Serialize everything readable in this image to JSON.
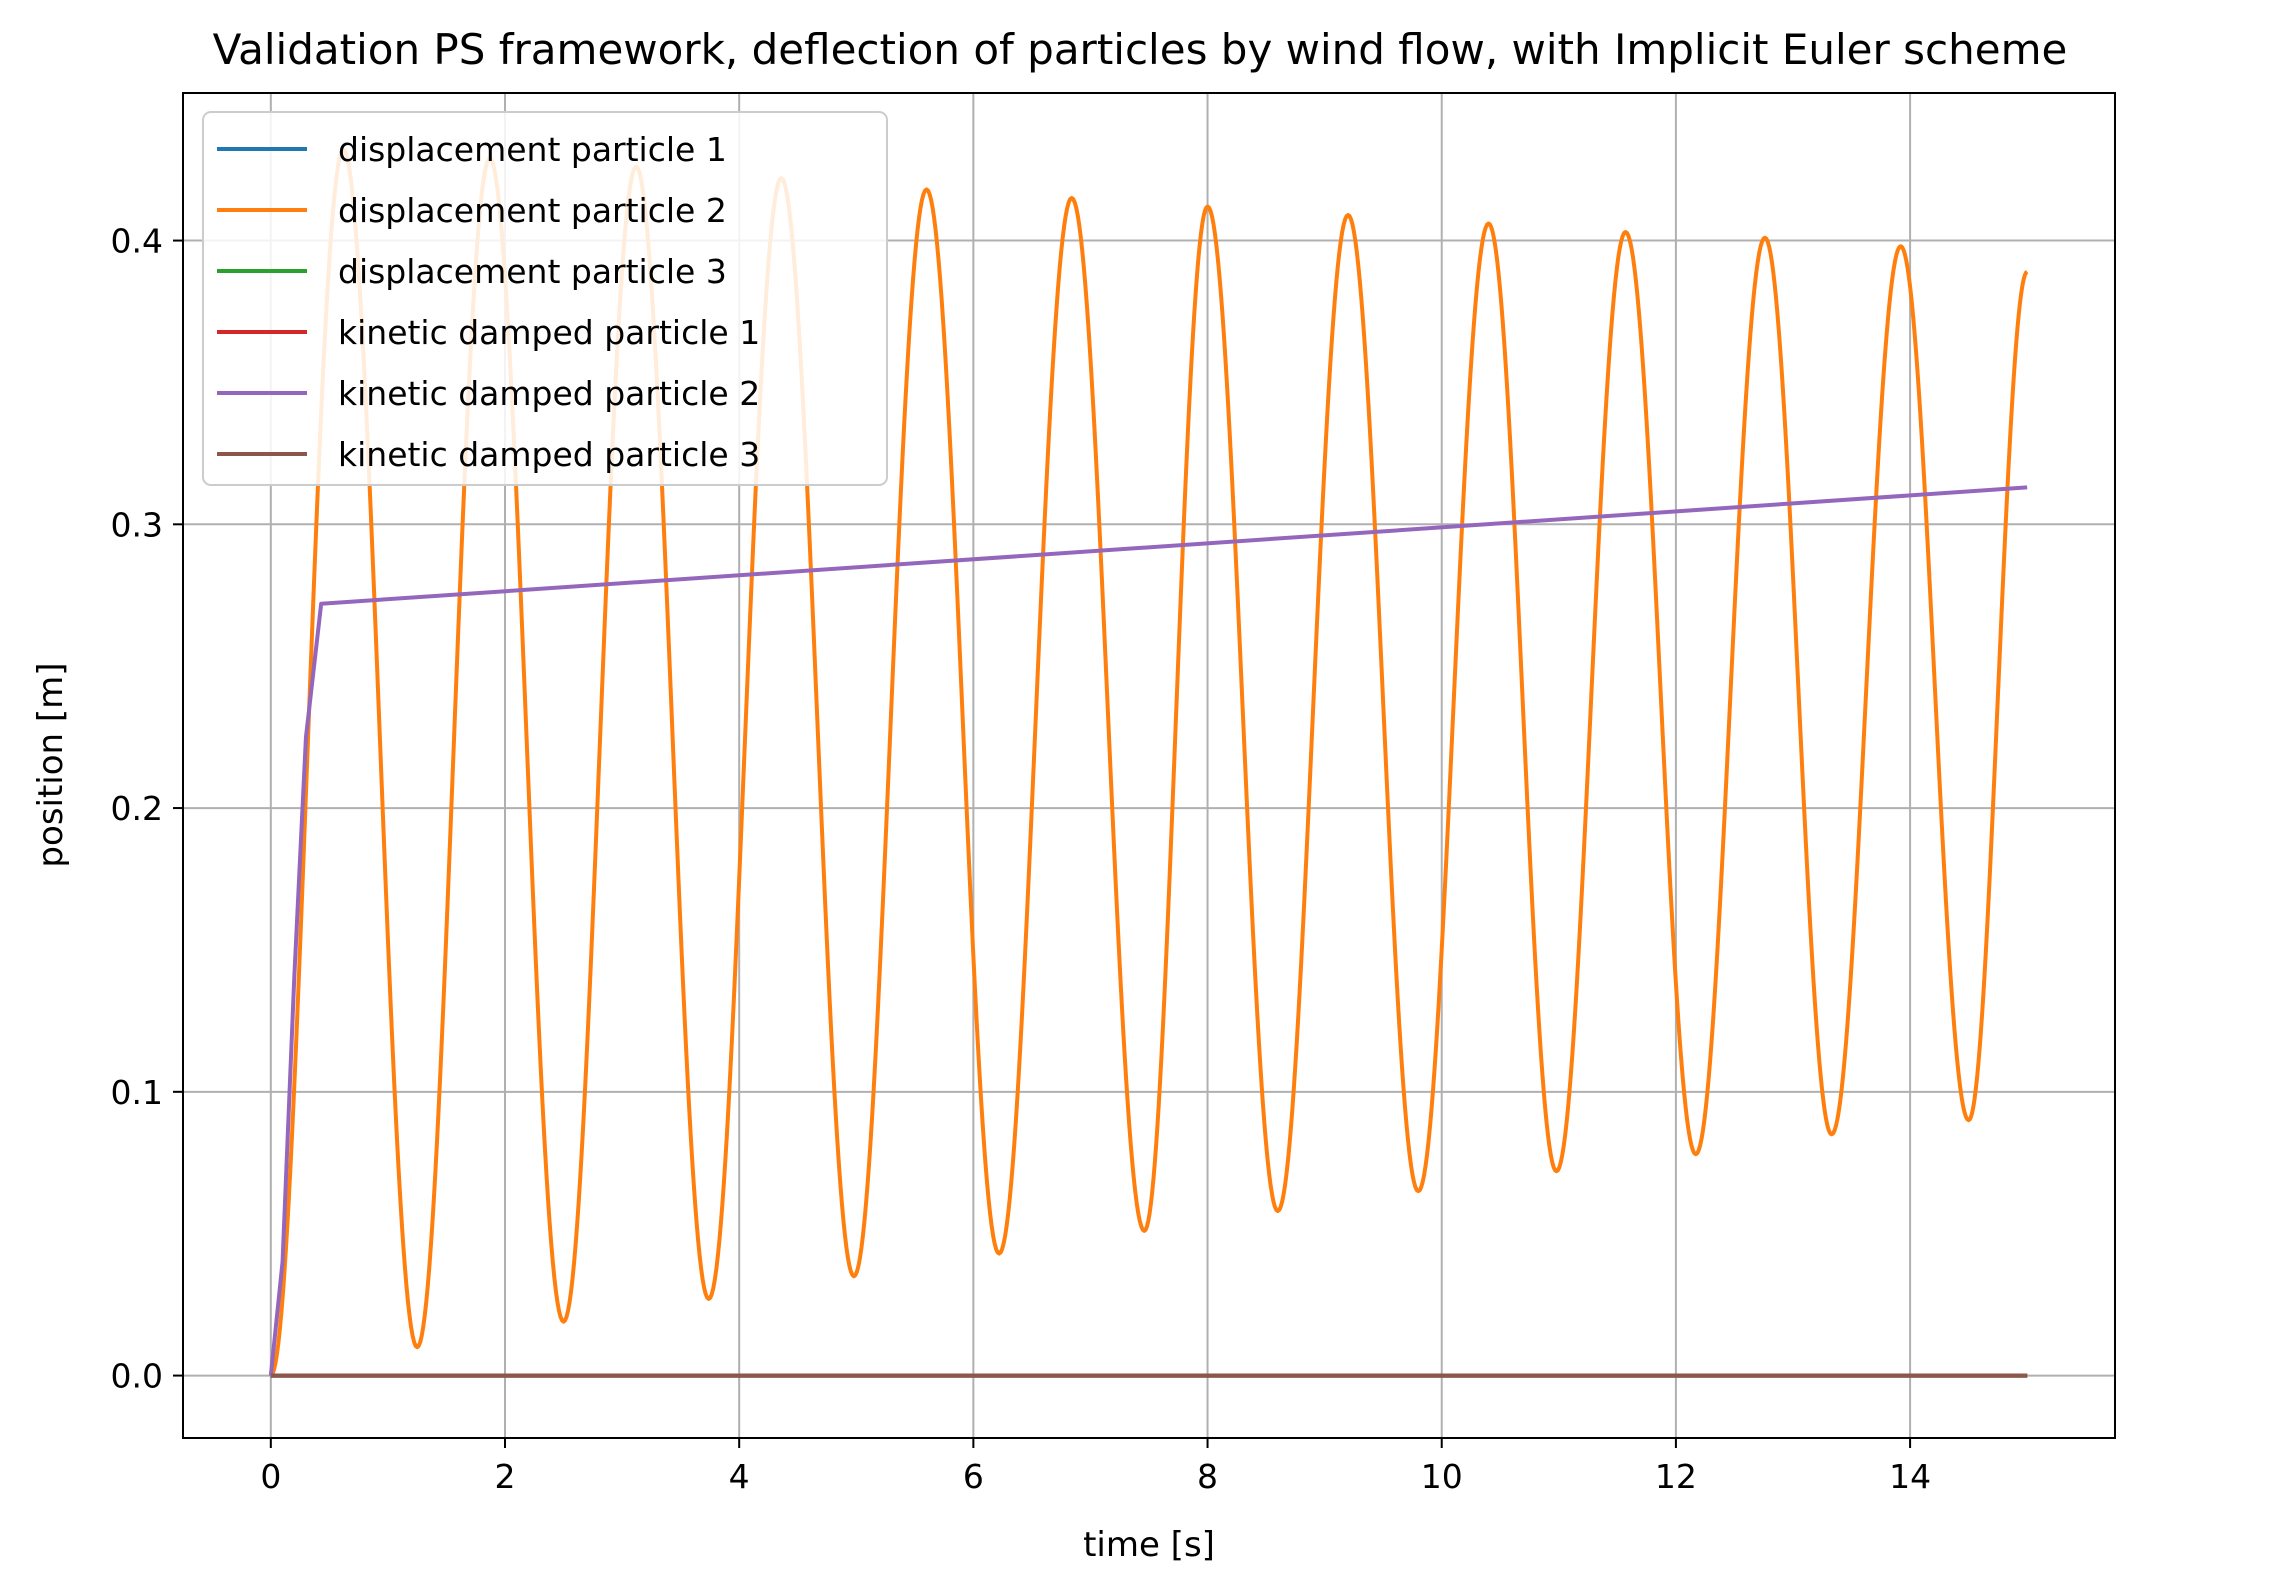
{
  "chart_data": {
    "type": "line",
    "title": "Validation PS framework, deflection of particles by wind flow, with Implicit Euler scheme",
    "xlabel": "time [s]",
    "ylabel": "position [m]",
    "xlim": [
      -0.75,
      15.75
    ],
    "ylim": [
      -0.022,
      0.452
    ],
    "xticks": [
      0,
      2,
      4,
      6,
      8,
      10,
      12,
      14
    ],
    "yticks": [
      0.0,
      0.1,
      0.2,
      0.3,
      0.4
    ],
    "xtick_labels": [
      "0",
      "2",
      "4",
      "6",
      "8",
      "10",
      "12",
      "14"
    ],
    "ytick_labels": [
      "0.0",
      "0.1",
      "0.2",
      "0.3",
      "0.4"
    ],
    "grid": true,
    "legend_position": "upper-left",
    "series": [
      {
        "name": "displacement particle 1",
        "color": "#1f77b4",
        "x": [
          0,
          15
        ],
        "y": [
          0,
          0
        ]
      },
      {
        "name": "displacement particle 2",
        "color": "#ff7f0e",
        "x": [
          0,
          0.62,
          1.25,
          1.87,
          2.5,
          3.12,
          3.74,
          4.36,
          4.98,
          5.6,
          6.22,
          6.84,
          7.46,
          8.0,
          8.6,
          9.2,
          9.8,
          10.4,
          10.98,
          11.57,
          12.17,
          12.76,
          13.33,
          13.92,
          14.5,
          15.0
        ],
        "y": [
          0,
          0.432,
          0.01,
          0.429,
          0.019,
          0.426,
          0.027,
          0.422,
          0.035,
          0.418,
          0.043,
          0.415,
          0.051,
          0.412,
          0.058,
          0.409,
          0.065,
          0.406,
          0.072,
          0.403,
          0.078,
          0.401,
          0.085,
          0.398,
          0.09,
          0.389
        ]
      },
      {
        "name": "displacement particle 3",
        "color": "#2ca02c",
        "x": [
          0,
          15
        ],
        "y": [
          0,
          0
        ]
      },
      {
        "name": "kinetic damped particle 1",
        "color": "#d62728",
        "x": [
          0,
          15
        ],
        "y": [
          0,
          0
        ]
      },
      {
        "name": "kinetic damped particle 2",
        "color": "#9467bd",
        "x": [
          0,
          0.1,
          0.2,
          0.3,
          0.43,
          15.0
        ],
        "y": [
          0,
          0.04,
          0.14,
          0.225,
          0.272,
          0.313
        ]
      },
      {
        "name": "kinetic damped particle 3",
        "color": "#8c564b",
        "x": [
          0,
          15
        ],
        "y": [
          0,
          0
        ]
      }
    ]
  }
}
